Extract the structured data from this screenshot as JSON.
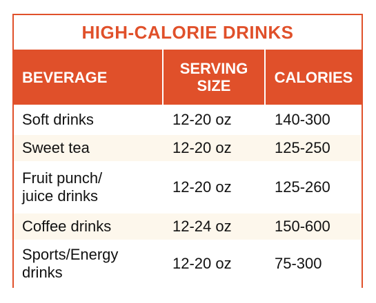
{
  "title": "HIGH-CALORIE DRINKS",
  "columns": {
    "beverage": "BEVERAGE",
    "serving_size_line1": "SERVING",
    "serving_size_line2": "SIZE",
    "calories": "CALORIES"
  },
  "rows": [
    {
      "beverage": [
        "Soft drinks"
      ],
      "serving_size": "12-20 oz",
      "calories": "140-300"
    },
    {
      "beverage": [
        "Sweet tea"
      ],
      "serving_size": "12-20 oz",
      "calories": "125-250"
    },
    {
      "beverage": [
        "Fruit punch/",
        "juice drinks"
      ],
      "serving_size": "12-20 oz",
      "calories": "125-260"
    },
    {
      "beverage": [
        "Coffee drinks"
      ],
      "serving_size": "12-24 oz",
      "calories": "150-600"
    },
    {
      "beverage": [
        "Sports/Energy",
        "drinks"
      ],
      "serving_size": "12-20 oz",
      "calories": "75-300"
    }
  ],
  "colors": {
    "accent": "#e0502a",
    "row_alt": "#fdf7ec"
  }
}
